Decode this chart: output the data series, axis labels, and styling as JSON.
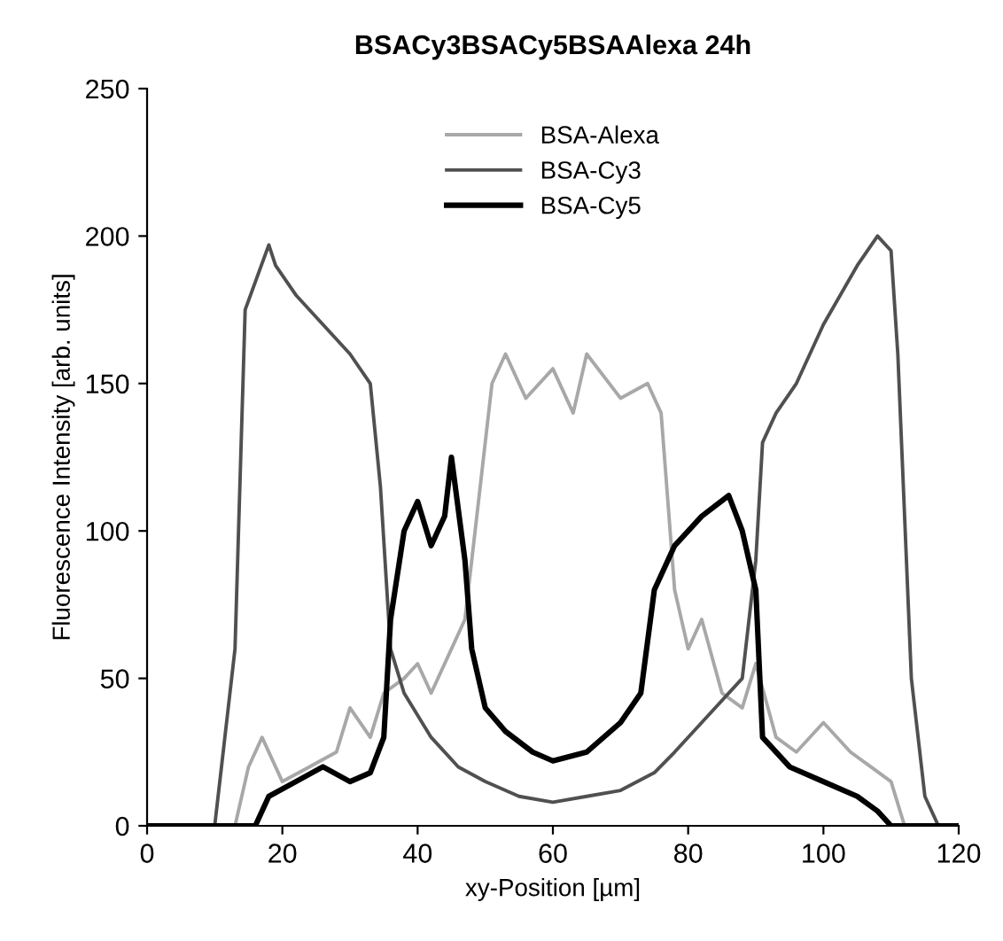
{
  "chart_data": {
    "type": "line",
    "title": "BSACy3BSACy5BSAAlexa 24h",
    "xlabel": "xy-Position [µm]",
    "ylabel": "Fluorescence Intensity [arb. units]",
    "xlim": [
      0,
      120
    ],
    "xticks": [
      0,
      20,
      40,
      60,
      80,
      100,
      120
    ],
    "ylim": [
      0,
      250
    ],
    "yticks": [
      0,
      50,
      100,
      150,
      200,
      250
    ],
    "grid": false,
    "legend": "top",
    "marker": "none",
    "line_style": "solid",
    "series": [
      {
        "name": "BSA-Alexa",
        "color": "#a8a8a8",
        "x": [
          0,
          13,
          15,
          17,
          20,
          24,
          28,
          30,
          33,
          35,
          38,
          40,
          42,
          45,
          47,
          49,
          51,
          53,
          56,
          60,
          63,
          65,
          70,
          74,
          76,
          77,
          78,
          80,
          82,
          85,
          88,
          90,
          93,
          96,
          100,
          104,
          107,
          110,
          112,
          120
        ],
        "values": [
          0,
          0,
          20,
          30,
          15,
          20,
          25,
          40,
          30,
          45,
          50,
          55,
          45,
          60,
          70,
          110,
          150,
          160,
          145,
          155,
          140,
          160,
          145,
          150,
          140,
          110,
          80,
          60,
          70,
          45,
          40,
          55,
          30,
          25,
          35,
          25,
          20,
          15,
          0,
          0
        ]
      },
      {
        "name": "BSA-Cy3",
        "color": "#505050",
        "x": [
          0,
          10,
          13,
          14.5,
          18,
          19,
          22,
          26,
          30,
          33,
          34.5,
          36,
          38,
          42,
          46,
          50,
          55,
          60,
          65,
          70,
          75,
          78,
          82,
          88,
          90,
          91,
          93,
          96,
          100,
          105,
          108,
          110,
          111,
          113,
          115,
          117,
          120
        ],
        "values": [
          0,
          0,
          60,
          175,
          197,
          190,
          180,
          170,
          160,
          150,
          115,
          60,
          45,
          30,
          20,
          15,
          10,
          8,
          10,
          12,
          18,
          25,
          35,
          50,
          90,
          130,
          140,
          150,
          170,
          190,
          200,
          195,
          160,
          50,
          10,
          0,
          0
        ]
      },
      {
        "name": "BSA-Cy5",
        "color": "#000000",
        "x": [
          0,
          16,
          18,
          22,
          26,
          30,
          33,
          35,
          36,
          38,
          40,
          42,
          44,
          45,
          47,
          48,
          50,
          53,
          57,
          60,
          65,
          70,
          73,
          75,
          78,
          82,
          86,
          88,
          90,
          91,
          95,
          100,
          105,
          108,
          110,
          120
        ],
        "values": [
          0,
          0,
          10,
          15,
          20,
          15,
          18,
          30,
          70,
          100,
          110,
          95,
          105,
          125,
          90,
          60,
          40,
          32,
          25,
          22,
          25,
          35,
          45,
          80,
          95,
          105,
          112,
          100,
          80,
          30,
          20,
          15,
          10,
          5,
          0,
          0
        ]
      }
    ]
  }
}
